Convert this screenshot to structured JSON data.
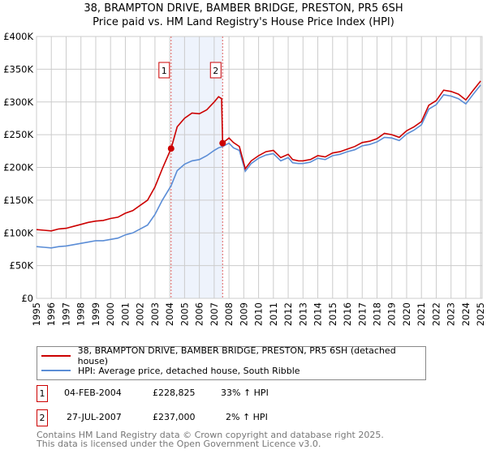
{
  "chart_data": {
    "type": "line",
    "title": "38, BRAMPTON DRIVE, BAMBER BRIDGE, PRESTON, PR5 6SH",
    "subtitle": "Price paid vs. HM Land Registry's House Price Index (HPI)",
    "xlabel": "",
    "ylabel": "",
    "xlim": [
      1995,
      2025.1
    ],
    "ylim": [
      0,
      400000
    ],
    "grid": true,
    "x_ticks": [
      "1995",
      "1996",
      "1997",
      "1998",
      "1999",
      "2000",
      "2001",
      "2002",
      "2003",
      "2004",
      "2005",
      "2006",
      "2007",
      "2008",
      "2009",
      "2010",
      "2011",
      "2012",
      "2013",
      "2014",
      "2015",
      "2016",
      "2017",
      "2018",
      "2019",
      "2020",
      "2021",
      "2022",
      "2023",
      "2024",
      "2025"
    ],
    "y_ticks": [
      {
        "v": 0,
        "label": "£0"
      },
      {
        "v": 50000,
        "label": "£50K"
      },
      {
        "v": 100000,
        "label": "£100K"
      },
      {
        "v": 150000,
        "label": "£150K"
      },
      {
        "v": 200000,
        "label": "£200K"
      },
      {
        "v": 250000,
        "label": "£250K"
      },
      {
        "v": 300000,
        "label": "£300K"
      },
      {
        "v": 350000,
        "label": "£350K"
      },
      {
        "v": 400000,
        "label": "£400K"
      }
    ],
    "shaded_region": [
      2004.09,
      2007.57
    ],
    "series": [
      {
        "name": "38, BRAMPTON DRIVE, BAMBER BRIDGE, PRESTON, PR5 6SH (detached house)",
        "color": "#cc0000",
        "x": [
          1995,
          1995.5,
          1996,
          1996.5,
          1997,
          1997.5,
          1998,
          1998.5,
          1999,
          1999.5,
          2000,
          2000.5,
          2001,
          2001.5,
          2002,
          2002.5,
          2003,
          2003.5,
          2004.09,
          2004.5,
          2005,
          2005.5,
          2006,
          2006.5,
          2007,
          2007.3,
          2007.5,
          2007.57,
          2008,
          2008.3,
          2008.7,
          2009.1,
          2009.5,
          2010,
          2010.5,
          2011,
          2011.5,
          2012,
          2012.3,
          2012.7,
          2013,
          2013.5,
          2014,
          2014.5,
          2015,
          2015.5,
          2016,
          2016.5,
          2017,
          2017.5,
          2018,
          2018.5,
          2019,
          2019.5,
          2020,
          2020.5,
          2021,
          2021.5,
          2022,
          2022.5,
          2023,
          2023.5,
          2024,
          2024.5,
          2025
        ],
        "y": [
          105000,
          104000,
          103000,
          106000,
          107000,
          110000,
          113000,
          116000,
          118000,
          119000,
          122000,
          124000,
          130000,
          134000,
          142000,
          150000,
          170000,
          198000,
          228825,
          262000,
          275000,
          283000,
          282000,
          288000,
          300000,
          308000,
          305000,
          237000,
          245000,
          238000,
          232000,
          198000,
          210000,
          218000,
          224000,
          226000,
          215000,
          220000,
          212000,
          210000,
          210000,
          212000,
          218000,
          216000,
          222000,
          224000,
          228000,
          232000,
          238000,
          240000,
          244000,
          252000,
          250000,
          246000,
          256000,
          262000,
          270000,
          295000,
          302000,
          318000,
          316000,
          312000,
          303000,
          318000,
          332000
        ]
      },
      {
        "name": "HPI: Average price, detached house, South Ribble",
        "color": "#5b8dd6",
        "x": [
          1995,
          1995.5,
          1996,
          1996.5,
          1997,
          1997.5,
          1998,
          1998.5,
          1999,
          1999.5,
          2000,
          2000.5,
          2001,
          2001.5,
          2002,
          2002.5,
          2003,
          2003.5,
          2004.09,
          2004.5,
          2005,
          2005.5,
          2006,
          2006.5,
          2007,
          2007.3,
          2007.57,
          2008,
          2008.3,
          2008.7,
          2009.1,
          2009.5,
          2010,
          2010.5,
          2011,
          2011.5,
          2012,
          2012.3,
          2012.7,
          2013,
          2013.5,
          2014,
          2014.5,
          2015,
          2015.5,
          2016,
          2016.5,
          2017,
          2017.5,
          2018,
          2018.5,
          2019,
          2019.5,
          2020,
          2020.5,
          2021,
          2021.5,
          2022,
          2022.5,
          2023,
          2023.5,
          2024,
          2024.5,
          2025
        ],
        "y": [
          79000,
          78000,
          77000,
          79000,
          80000,
          82000,
          84000,
          86000,
          88000,
          88000,
          90000,
          92000,
          97000,
          100000,
          106000,
          112000,
          128000,
          150000,
          172000,
          195000,
          205000,
          210000,
          212000,
          218000,
          226000,
          230000,
          232000,
          237000,
          230000,
          226000,
          194000,
          206000,
          214000,
          219000,
          221000,
          210000,
          215000,
          207000,
          206000,
          206000,
          208000,
          214000,
          212000,
          218000,
          220000,
          224000,
          227000,
          233000,
          235000,
          239000,
          246000,
          245000,
          241000,
          251000,
          257000,
          265000,
          289000,
          296000,
          311000,
          309000,
          305000,
          297000,
          312000,
          326000
        ]
      }
    ],
    "sales": [
      {
        "label": "1",
        "x": 2004.09,
        "y": 228825
      },
      {
        "label": "2",
        "x": 2007.57,
        "y": 237000
      }
    ]
  },
  "legend": {
    "property": "38, BRAMPTON DRIVE, BAMBER BRIDGE, PRESTON, PR5 6SH (detached house)",
    "hpi": "HPI: Average price, detached house, South Ribble"
  },
  "transactions": [
    {
      "num": "1",
      "date": "04-FEB-2004",
      "price": "£228,825",
      "hpi": "33% ↑ HPI"
    },
    {
      "num": "2",
      "date": "27-JUL-2007",
      "price": "£237,000",
      "hpi": "2% ↑ HPI"
    }
  ],
  "footer": {
    "line1": "Contains HM Land Registry data © Crown copyright and database right 2025.",
    "line2": "This data is licensed under the Open Government Licence v3.0."
  }
}
